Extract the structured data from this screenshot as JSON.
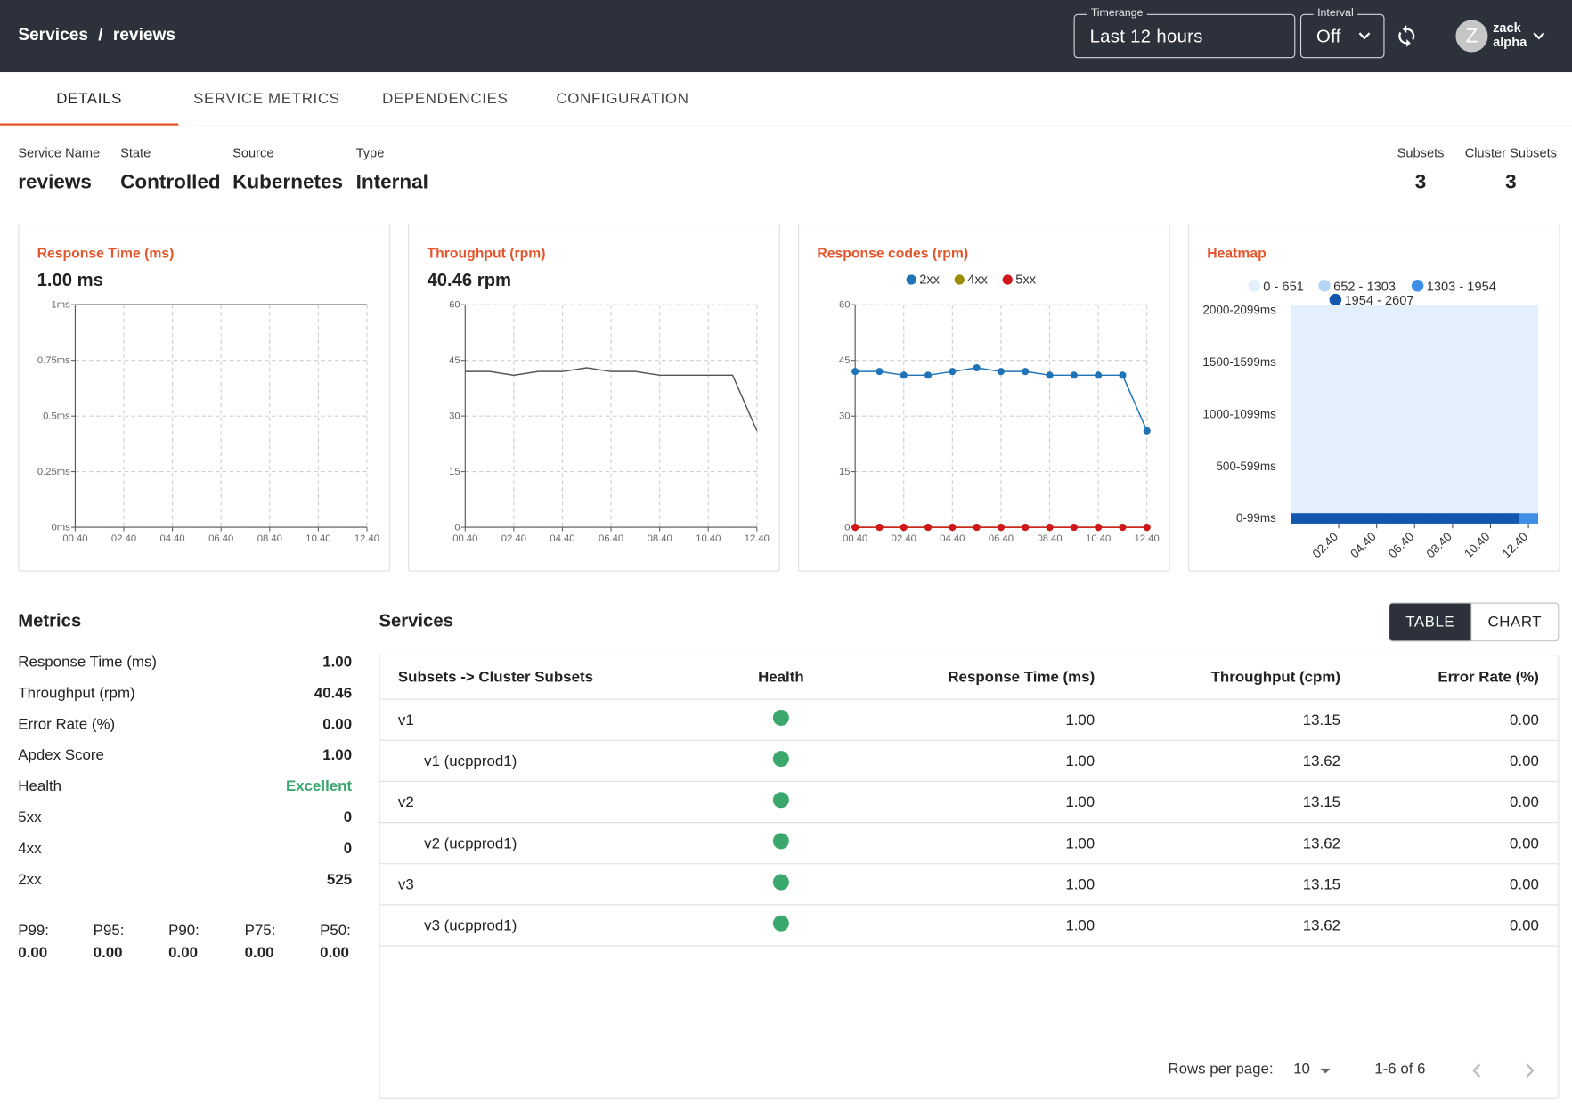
{
  "header": {
    "breadcrumb": [
      "Services",
      "/",
      "reviews"
    ],
    "timerange": {
      "label": "Timerange",
      "value": "Last 12 hours"
    },
    "interval": {
      "label": "Interval",
      "value": "Off"
    },
    "user": {
      "initial": "Z",
      "name": "zack",
      "org": "alpha"
    }
  },
  "tabs": [
    "DETAILS",
    "SERVICE METRICS",
    "DEPENDENCIES",
    "CONFIGURATION"
  ],
  "active_tab": 0,
  "summary": {
    "fields": [
      {
        "label": "Service Name",
        "value": "reviews"
      },
      {
        "label": "State",
        "value": "Controlled"
      },
      {
        "label": "Source",
        "value": "Kubernetes"
      },
      {
        "label": "Type",
        "value": "Internal"
      }
    ],
    "counts": [
      {
        "label": "Subsets",
        "value": "3"
      },
      {
        "label": "Cluster Subsets",
        "value": "3"
      }
    ]
  },
  "charts": [
    {
      "type": "line",
      "title": "Response Time (ms)",
      "headline": "1.00 ms",
      "categories": [
        "00.40",
        null,
        "02.40",
        null,
        "04.40",
        null,
        "06.40",
        null,
        "08.40",
        null,
        "10.40",
        null,
        "12.40"
      ],
      "ylim": [
        0,
        1
      ],
      "yticks": [
        {
          "value": 0,
          "label": "0ms"
        },
        {
          "value": 0.25,
          "label": "0.25ms"
        },
        {
          "value": 0.5,
          "label": "0.5ms"
        },
        {
          "value": 0.75,
          "label": "0.75ms"
        },
        {
          "value": 1,
          "label": "1ms"
        }
      ],
      "grid": true,
      "markers": false,
      "series": [
        {
          "color": "#555555",
          "values": [
            1,
            1,
            1,
            1,
            1,
            1,
            1,
            1,
            1,
            1,
            1,
            1,
            1
          ]
        }
      ]
    },
    {
      "type": "line",
      "title": "Throughput (rpm)",
      "headline": "40.46 rpm",
      "categories": [
        "00.40",
        null,
        "02.40",
        null,
        "04.40",
        null,
        "06.40",
        null,
        "08.40",
        null,
        "10.40",
        null,
        "12.40"
      ],
      "ylim": [
        0,
        60
      ],
      "yticks": [
        0,
        15,
        30,
        45,
        60
      ],
      "grid": true,
      "markers": false,
      "series": [
        {
          "color": "#555555",
          "values": [
            42,
            42,
            41,
            42,
            42,
            43,
            42,
            42,
            41,
            41,
            41,
            41,
            26
          ]
        }
      ]
    },
    {
      "type": "line",
      "title": "Response codes (rpm)",
      "categories": [
        "00.40",
        null,
        "02.40",
        null,
        "04.40",
        null,
        "06.40",
        null,
        "08.40",
        null,
        "10.40",
        null,
        "12.40"
      ],
      "ylim": [
        0,
        60
      ],
      "yticks": [
        0,
        15,
        30,
        45,
        60
      ],
      "grid": true,
      "markers": true,
      "legend": "top",
      "series": [
        {
          "name": "2xx",
          "color": "#1f73b7",
          "values": [
            42,
            42,
            41,
            41,
            42,
            43,
            42,
            42,
            41,
            41,
            41,
            41,
            26
          ]
        },
        {
          "name": "4xx",
          "color": "#9c8a00",
          "values": [
            0,
            0,
            0,
            0,
            0,
            0,
            0,
            0,
            0,
            0,
            0,
            0,
            0
          ]
        },
        {
          "name": "5xx",
          "color": "#d0181c",
          "values": [
            0,
            0,
            0,
            0,
            0,
            0,
            0,
            0,
            0,
            0,
            0,
            0,
            0
          ]
        }
      ]
    },
    {
      "type": "heatmap",
      "title": "Heatmap",
      "categories": [
        null,
        null,
        "02.40",
        null,
        "04.40",
        null,
        "06.40",
        null,
        "08.40",
        null,
        "10.40",
        null,
        "12.40"
      ],
      "ycategories": [
        "0-99ms",
        null,
        null,
        null,
        null,
        "500-599ms",
        null,
        null,
        null,
        null,
        "1000-1099ms",
        null,
        null,
        null,
        null,
        "1500-1599ms",
        null,
        null,
        null,
        null,
        "2000-2099ms"
      ],
      "bins": [
        0,
        651,
        1303,
        1954,
        2607
      ],
      "legend": [
        {
          "label": "0 - 651",
          "color": "#e3effc"
        },
        {
          "label": "652 - 1303",
          "color": "#b5d6f6"
        },
        {
          "label": "1303 - 1954",
          "color": "#3f8fe6"
        },
        {
          "label": "1954 - 2607",
          "color": "#1356b0"
        }
      ],
      "values": [
        [
          2520,
          2520,
          2460,
          2520,
          2520,
          2580,
          2520,
          2520,
          2460,
          2460,
          2460,
          2460,
          1560
        ],
        [
          0,
          0,
          0,
          0,
          0,
          0,
          0,
          0,
          0,
          0,
          0,
          0,
          0
        ],
        [
          0,
          0,
          0,
          0,
          0,
          0,
          0,
          0,
          0,
          0,
          0,
          0,
          0
        ],
        [
          0,
          0,
          0,
          0,
          0,
          0,
          0,
          0,
          0,
          0,
          0,
          0,
          0
        ],
        [
          0,
          0,
          0,
          0,
          0,
          0,
          0,
          0,
          0,
          0,
          0,
          0,
          0
        ],
        [
          0,
          0,
          0,
          0,
          0,
          0,
          0,
          0,
          0,
          0,
          0,
          0,
          0
        ],
        [
          0,
          0,
          0,
          0,
          0,
          0,
          0,
          0,
          0,
          0,
          0,
          0,
          0
        ],
        [
          0,
          0,
          0,
          0,
          0,
          0,
          0,
          0,
          0,
          0,
          0,
          0,
          0
        ],
        [
          0,
          0,
          0,
          0,
          0,
          0,
          0,
          0,
          0,
          0,
          0,
          0,
          0
        ],
        [
          0,
          0,
          0,
          0,
          0,
          0,
          0,
          0,
          0,
          0,
          0,
          0,
          0
        ],
        [
          0,
          0,
          0,
          0,
          0,
          0,
          0,
          0,
          0,
          0,
          0,
          0,
          0
        ],
        [
          0,
          0,
          0,
          0,
          0,
          0,
          0,
          0,
          0,
          0,
          0,
          0,
          0
        ],
        [
          0,
          0,
          0,
          0,
          0,
          0,
          0,
          0,
          0,
          0,
          0,
          0,
          0
        ],
        [
          0,
          0,
          0,
          0,
          0,
          0,
          0,
          0,
          0,
          0,
          0,
          0,
          0
        ],
        [
          0,
          0,
          0,
          0,
          0,
          0,
          0,
          0,
          0,
          0,
          0,
          0,
          0
        ],
        [
          0,
          0,
          0,
          0,
          0,
          0,
          0,
          0,
          0,
          0,
          0,
          0,
          0
        ],
        [
          0,
          0,
          0,
          0,
          0,
          0,
          0,
          0,
          0,
          0,
          0,
          0,
          0
        ],
        [
          0,
          0,
          0,
          0,
          0,
          0,
          0,
          0,
          0,
          0,
          0,
          0,
          0
        ],
        [
          0,
          0,
          0,
          0,
          0,
          0,
          0,
          0,
          0,
          0,
          0,
          0,
          0
        ],
        [
          0,
          0,
          0,
          0,
          0,
          0,
          0,
          0,
          0,
          0,
          0,
          0,
          0
        ],
        [
          0,
          0,
          0,
          0,
          0,
          0,
          0,
          0,
          0,
          0,
          0,
          0,
          0
        ]
      ]
    }
  ],
  "metrics": {
    "title": "Metrics",
    "items": [
      {
        "label": "Response Time (ms)",
        "value": "1.00"
      },
      {
        "label": "Throughput (rpm)",
        "value": "40.46"
      },
      {
        "label": "Error Rate (%)",
        "value": "0.00"
      },
      {
        "label": "Apdex Score",
        "value": "1.00"
      },
      {
        "label": "Health",
        "value": "Excellent",
        "color": "#3aa76d"
      },
      {
        "label": "5xx",
        "value": "0"
      },
      {
        "label": "4xx",
        "value": "0"
      },
      {
        "label": "2xx",
        "value": "525"
      }
    ],
    "percentiles": [
      {
        "label": "P99:",
        "value": "0.00"
      },
      {
        "label": "P95:",
        "value": "0.00"
      },
      {
        "label": "P90:",
        "value": "0.00"
      },
      {
        "label": "P75:",
        "value": "0.00"
      },
      {
        "label": "P50:",
        "value": "0.00"
      }
    ]
  },
  "services": {
    "title": "Services",
    "views": [
      "TABLE",
      "CHART"
    ],
    "active_view": 0,
    "columns": [
      "Subsets -> Cluster Subsets",
      "Health",
      "Response Time (ms)",
      "Throughput (cpm)",
      "Error Rate (%)"
    ],
    "health_color": "#3aa76d",
    "rows": [
      {
        "indent": false,
        "cells": [
          "v1",
          "1.00",
          "13.15",
          "0.00"
        ]
      },
      {
        "indent": true,
        "cells": [
          "v1 (ucpprod1)",
          "1.00",
          "13.62",
          "0.00"
        ]
      },
      {
        "indent": false,
        "cells": [
          "v2",
          "1.00",
          "13.15",
          "0.00"
        ]
      },
      {
        "indent": true,
        "cells": [
          "v2 (ucpprod1)",
          "1.00",
          "13.62",
          "0.00"
        ]
      },
      {
        "indent": false,
        "cells": [
          "v3",
          "1.00",
          "13.15",
          "0.00"
        ]
      },
      {
        "indent": true,
        "cells": [
          "v3 (ucpprod1)",
          "1.00",
          "13.62",
          "0.00"
        ]
      }
    ],
    "footer": {
      "rows_per_page_label": "Rows per page:",
      "rows_per_page": "10",
      "range": "1-6 of 6"
    }
  }
}
